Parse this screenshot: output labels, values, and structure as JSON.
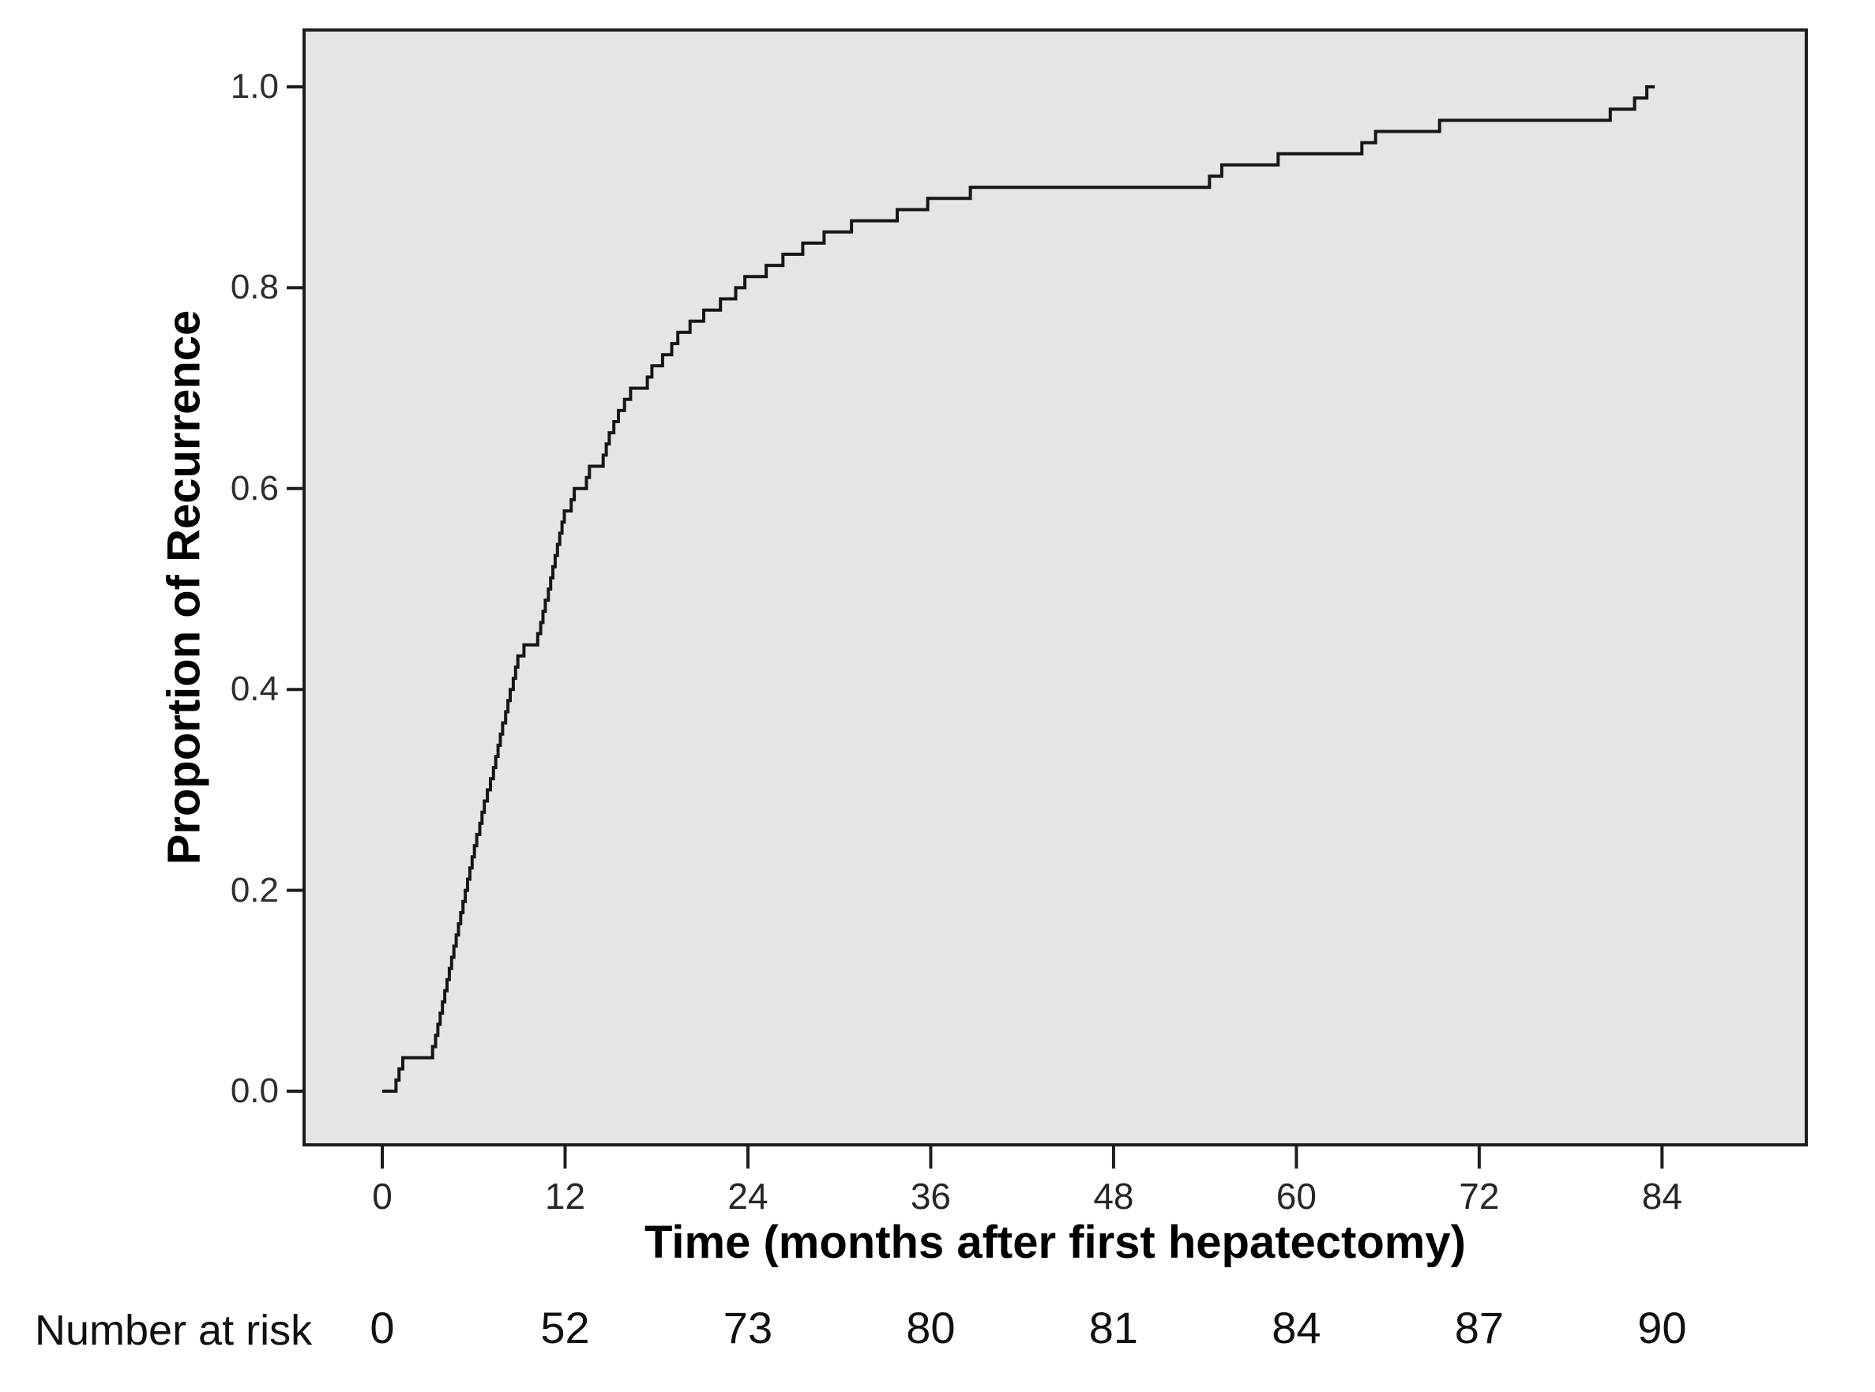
{
  "chart_data": {
    "type": "line",
    "subtype": "step-cumulative-incidence",
    "title": "",
    "xlabel": "Time (months after first hepatectomy)",
    "ylabel": "Proportion of Recurrence",
    "x_ticks": [
      0,
      12,
      24,
      36,
      48,
      60,
      72,
      84
    ],
    "x_tick_labels": [
      "0",
      "12",
      "24",
      "36",
      "48",
      "60",
      "72",
      "84"
    ],
    "y_ticks": [
      0.0,
      0.2,
      0.4,
      0.6,
      0.8,
      1.0
    ],
    "y_tick_labels": [
      "0.0",
      "0.2",
      "0.4",
      "0.6",
      "0.8",
      "1.0"
    ],
    "xlim": [
      -5.2,
      93.5
    ],
    "ylim": [
      -0.054,
      1.057
    ],
    "grid": false,
    "legend": null,
    "plot_bg_color": "#e5e5e5",
    "frame_color": "#1d1d1d",
    "line_color": "#161616",
    "series": [
      {
        "name": "Proportion of recurrence",
        "n_total": 90,
        "start": [
          0,
          0.0
        ],
        "event_times_months": [
          0.9,
          1.1,
          1.35,
          3.3,
          3.5,
          3.65,
          3.8,
          3.95,
          4.1,
          4.25,
          4.4,
          4.55,
          4.7,
          4.85,
          5.0,
          5.15,
          5.3,
          5.45,
          5.6,
          5.75,
          5.9,
          6.05,
          6.2,
          6.4,
          6.55,
          6.7,
          6.9,
          7.1,
          7.3,
          7.45,
          7.6,
          7.75,
          7.9,
          8.1,
          8.25,
          8.4,
          8.6,
          8.75,
          8.9,
          9.3,
          10.2,
          10.4,
          10.55,
          10.7,
          10.9,
          11.05,
          11.2,
          11.35,
          11.5,
          11.65,
          11.8,
          11.95,
          12.4,
          12.6,
          13.4,
          13.6,
          14.5,
          14.7,
          14.9,
          15.2,
          15.5,
          15.9,
          16.3,
          17.4,
          17.7,
          18.4,
          19.0,
          19.4,
          20.2,
          21.1,
          22.2,
          23.2,
          23.8,
          25.2,
          26.3,
          27.6,
          29.0,
          30.8,
          33.8,
          35.8,
          38.6,
          54.3,
          55.1,
          58.8,
          64.3,
          65.2,
          69.4,
          80.6,
          82.2,
          83.0
        ]
      }
    ],
    "number_at_risk": {
      "label": "Number at risk",
      "times": [
        0,
        12,
        24,
        36,
        48,
        60,
        72,
        84
      ],
      "counts": [
        "0",
        "52",
        "73",
        "80",
        "81",
        "84",
        "87",
        "90"
      ]
    }
  }
}
